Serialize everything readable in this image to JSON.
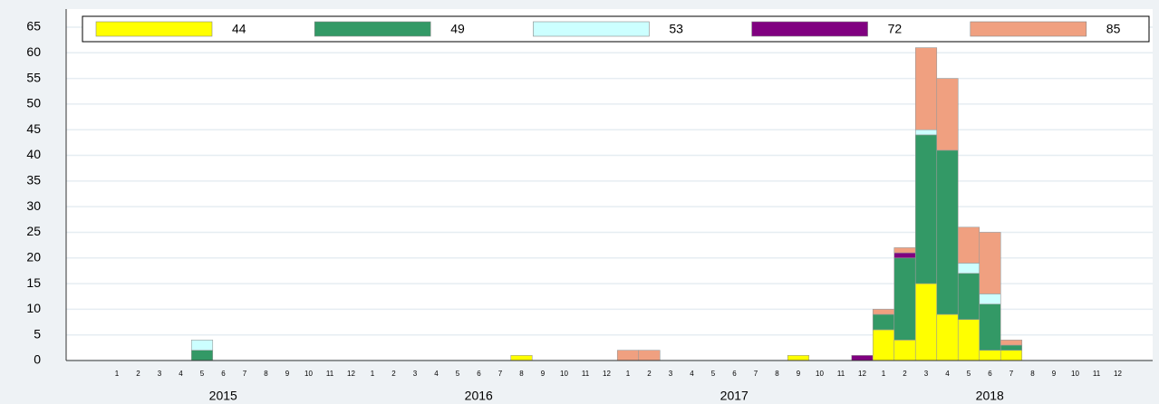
{
  "chart_data": {
    "type": "stacked_bar",
    "categories": [
      "1",
      "2",
      "3",
      "4",
      "5",
      "6",
      "7",
      "8",
      "9",
      "10",
      "11",
      "12",
      "1",
      "2",
      "3",
      "4",
      "5",
      "6",
      "7",
      "8",
      "9",
      "10",
      "11",
      "12",
      "1",
      "2",
      "3",
      "4",
      "5",
      "6",
      "7",
      "8",
      "9",
      "10",
      "11",
      "12",
      "1",
      "2",
      "3",
      "4",
      "5",
      "6",
      "7",
      "8",
      "9",
      "10",
      "11",
      "12"
    ],
    "year_labels": [
      "2015",
      "2016",
      "2017",
      "2018"
    ],
    "ylim": [
      0,
      65
    ],
    "yticks": [
      0,
      5,
      10,
      15,
      20,
      25,
      30,
      35,
      40,
      45,
      50,
      55,
      60,
      65
    ],
    "grid": true,
    "series": [
      {
        "name": "44",
        "color": "#ffff00",
        "values": [
          0,
          0,
          0,
          0,
          0,
          0,
          0,
          0,
          0,
          0,
          0,
          0,
          0,
          0,
          0,
          0,
          0,
          0,
          0,
          1,
          0,
          0,
          0,
          0,
          0,
          0,
          0,
          0,
          0,
          0,
          0,
          0,
          1,
          0,
          0,
          0,
          6,
          4,
          15,
          9,
          8,
          2,
          2,
          0,
          0,
          0,
          0,
          0
        ]
      },
      {
        "name": "49",
        "color": "#339966",
        "values": [
          0,
          0,
          0,
          0,
          2,
          0,
          0,
          0,
          0,
          0,
          0,
          0,
          0,
          0,
          0,
          0,
          0,
          0,
          0,
          0,
          0,
          0,
          0,
          0,
          0,
          0,
          0,
          0,
          0,
          0,
          0,
          0,
          0,
          0,
          0,
          0,
          3,
          16,
          29,
          32,
          9,
          9,
          1,
          0,
          0,
          0,
          0,
          0
        ]
      },
      {
        "name": "53",
        "color": "#ccffff",
        "values": [
          0,
          0,
          0,
          0,
          2,
          0,
          0,
          0,
          0,
          0,
          0,
          0,
          0,
          0,
          0,
          0,
          0,
          0,
          0,
          0,
          0,
          0,
          0,
          0,
          0,
          0,
          0,
          0,
          0,
          0,
          0,
          0,
          0,
          0,
          0,
          0,
          0,
          0,
          1,
          0,
          2,
          2,
          0,
          0,
          0,
          0,
          0,
          0
        ]
      },
      {
        "name": "72",
        "color": "#800080",
        "values": [
          0,
          0,
          0,
          0,
          0,
          0,
          0,
          0,
          0,
          0,
          0,
          0,
          0,
          0,
          0,
          0,
          0,
          0,
          0,
          0,
          0,
          0,
          0,
          0,
          0,
          0,
          0,
          0,
          0,
          0,
          0,
          0,
          0,
          0,
          0,
          1,
          0,
          1,
          0,
          0,
          0,
          0,
          0,
          0,
          0,
          0,
          0,
          0
        ]
      },
      {
        "name": "85",
        "color": "#f0a080",
        "values": [
          0,
          0,
          0,
          0,
          0,
          0,
          0,
          0,
          0,
          0,
          0,
          0,
          0,
          0,
          0,
          0,
          0,
          0,
          0,
          0,
          0,
          0,
          0,
          0,
          2,
          2,
          0,
          0,
          0,
          0,
          0,
          0,
          0,
          0,
          0,
          0,
          1,
          1,
          16,
          14,
          7,
          12,
          1,
          0,
          0,
          0,
          0,
          0
        ]
      }
    ]
  }
}
